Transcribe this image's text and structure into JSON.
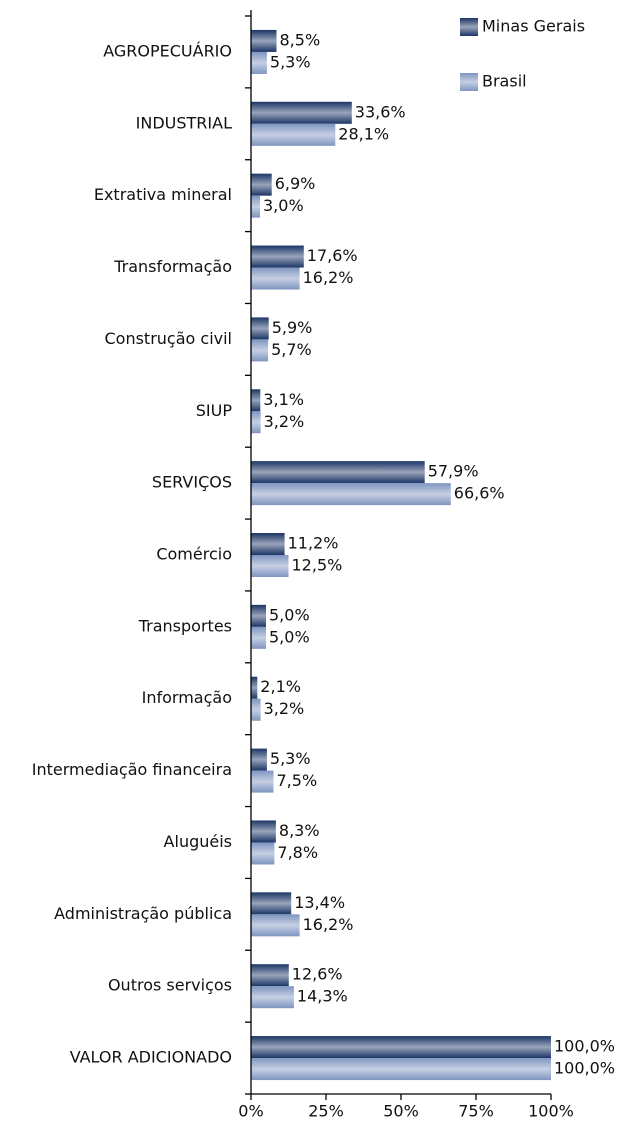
{
  "chart_data": {
    "type": "bar",
    "orientation": "horizontal",
    "categories": [
      "AGROPECUÁRIO",
      "INDUSTRIAL",
      "Extrativa mineral",
      "Transformação",
      "Construção civil",
      "SIUP",
      "SERVIÇOS",
      "Comércio",
      "Transportes",
      "Informação",
      "Intermediação financeira",
      "Aluguéis",
      "Administração pública",
      "Outros serviços",
      "VALOR ADICIONADO"
    ],
    "series": [
      {
        "name": "Minas Gerais",
        "color": "#1c3566",
        "values": [
          8.5,
          33.6,
          6.9,
          17.6,
          5.9,
          3.1,
          57.9,
          11.2,
          5.0,
          2.1,
          5.3,
          8.3,
          13.4,
          12.6,
          100.0
        ],
        "value_labels": [
          "8,5%",
          "33,6%",
          "6,9%",
          "17,6%",
          "5,9%",
          "3,1%",
          "57,9%",
          "11,2%",
          "5,0%",
          "2,1%",
          "5,3%",
          "8,3%",
          "13,4%",
          "12,6%",
          "100,0%"
        ]
      },
      {
        "name": "Brasil",
        "color": "#7f95c0",
        "values": [
          5.3,
          28.1,
          3.0,
          16.2,
          5.7,
          3.2,
          66.6,
          12.5,
          5.0,
          3.2,
          7.5,
          7.8,
          16.2,
          14.3,
          100.0
        ],
        "value_labels": [
          "5,3%",
          "28,1%",
          "3,0%",
          "16,2%",
          "5,7%",
          "3,2%",
          "66,6%",
          "12,5%",
          "5,0%",
          "3,2%",
          "7,5%",
          "7,8%",
          "16,2%",
          "14,3%",
          "100,0%"
        ]
      }
    ],
    "xlim": [
      0,
      100
    ],
    "xticks": [
      {
        "value": 0,
        "label": "0%"
      },
      {
        "value": 25,
        "label": "25%"
      },
      {
        "value": 50,
        "label": "50%"
      },
      {
        "value": 75,
        "label": "75%"
      },
      {
        "value": 100,
        "label": "100%"
      }
    ],
    "legend": "top-right"
  }
}
